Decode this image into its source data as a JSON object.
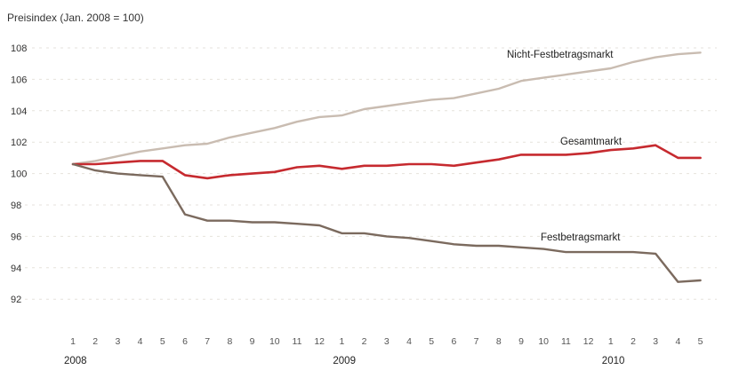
{
  "chart_data": {
    "type": "line",
    "ylabel": "Preisindex (Jan. 2008 = 100)",
    "xlabel": "",
    "ylim": [
      91,
      109
    ],
    "yticks": [
      92,
      94,
      96,
      98,
      100,
      102,
      104,
      106,
      108
    ],
    "x": [
      "1",
      "2",
      "3",
      "4",
      "5",
      "6",
      "7",
      "8",
      "9",
      "10",
      "11",
      "12",
      "1",
      "2",
      "3",
      "4",
      "5",
      "6",
      "7",
      "8",
      "9",
      "10",
      "11",
      "12",
      "1",
      "2",
      "3",
      "4",
      "5"
    ],
    "years": [
      {
        "label": "2008",
        "index": 0
      },
      {
        "label": "2009",
        "index": 12
      },
      {
        "label": "2010",
        "index": 24
      }
    ],
    "grid": true,
    "series": [
      {
        "name": "Nicht-Festbetragsmarkt",
        "color": "#c9bcb1",
        "values": [
          100.6,
          100.8,
          101.1,
          101.4,
          101.6,
          101.8,
          101.9,
          102.3,
          102.6,
          102.9,
          103.3,
          103.6,
          103.7,
          104.1,
          104.3,
          104.5,
          104.7,
          104.8,
          105.1,
          105.4,
          105.9,
          106.1,
          106.3,
          106.5,
          106.7,
          107.1,
          107.4,
          107.6,
          107.7
        ]
      },
      {
        "name": "Gesamtmarkt",
        "color": "#c62a2f",
        "values": [
          100.6,
          100.6,
          100.7,
          100.8,
          100.8,
          99.9,
          99.7,
          99.9,
          100.0,
          100.1,
          100.4,
          100.5,
          100.3,
          100.5,
          100.5,
          100.6,
          100.6,
          100.5,
          100.7,
          100.9,
          101.2,
          101.2,
          101.2,
          101.3,
          101.5,
          101.6,
          101.8,
          101.0,
          101.0
        ]
      },
      {
        "name": "Festbetragsmarkt",
        "color": "#7b6a5e",
        "values": [
          100.6,
          100.2,
          100.0,
          99.9,
          99.8,
          97.4,
          97.0,
          97.0,
          96.9,
          96.9,
          96.8,
          96.7,
          96.2,
          96.2,
          96.0,
          95.9,
          95.7,
          95.5,
          95.4,
          95.4,
          95.3,
          95.2,
          95.0,
          95.0,
          95.0,
          95.0,
          94.9,
          93.1,
          93.2
        ]
      }
    ]
  }
}
